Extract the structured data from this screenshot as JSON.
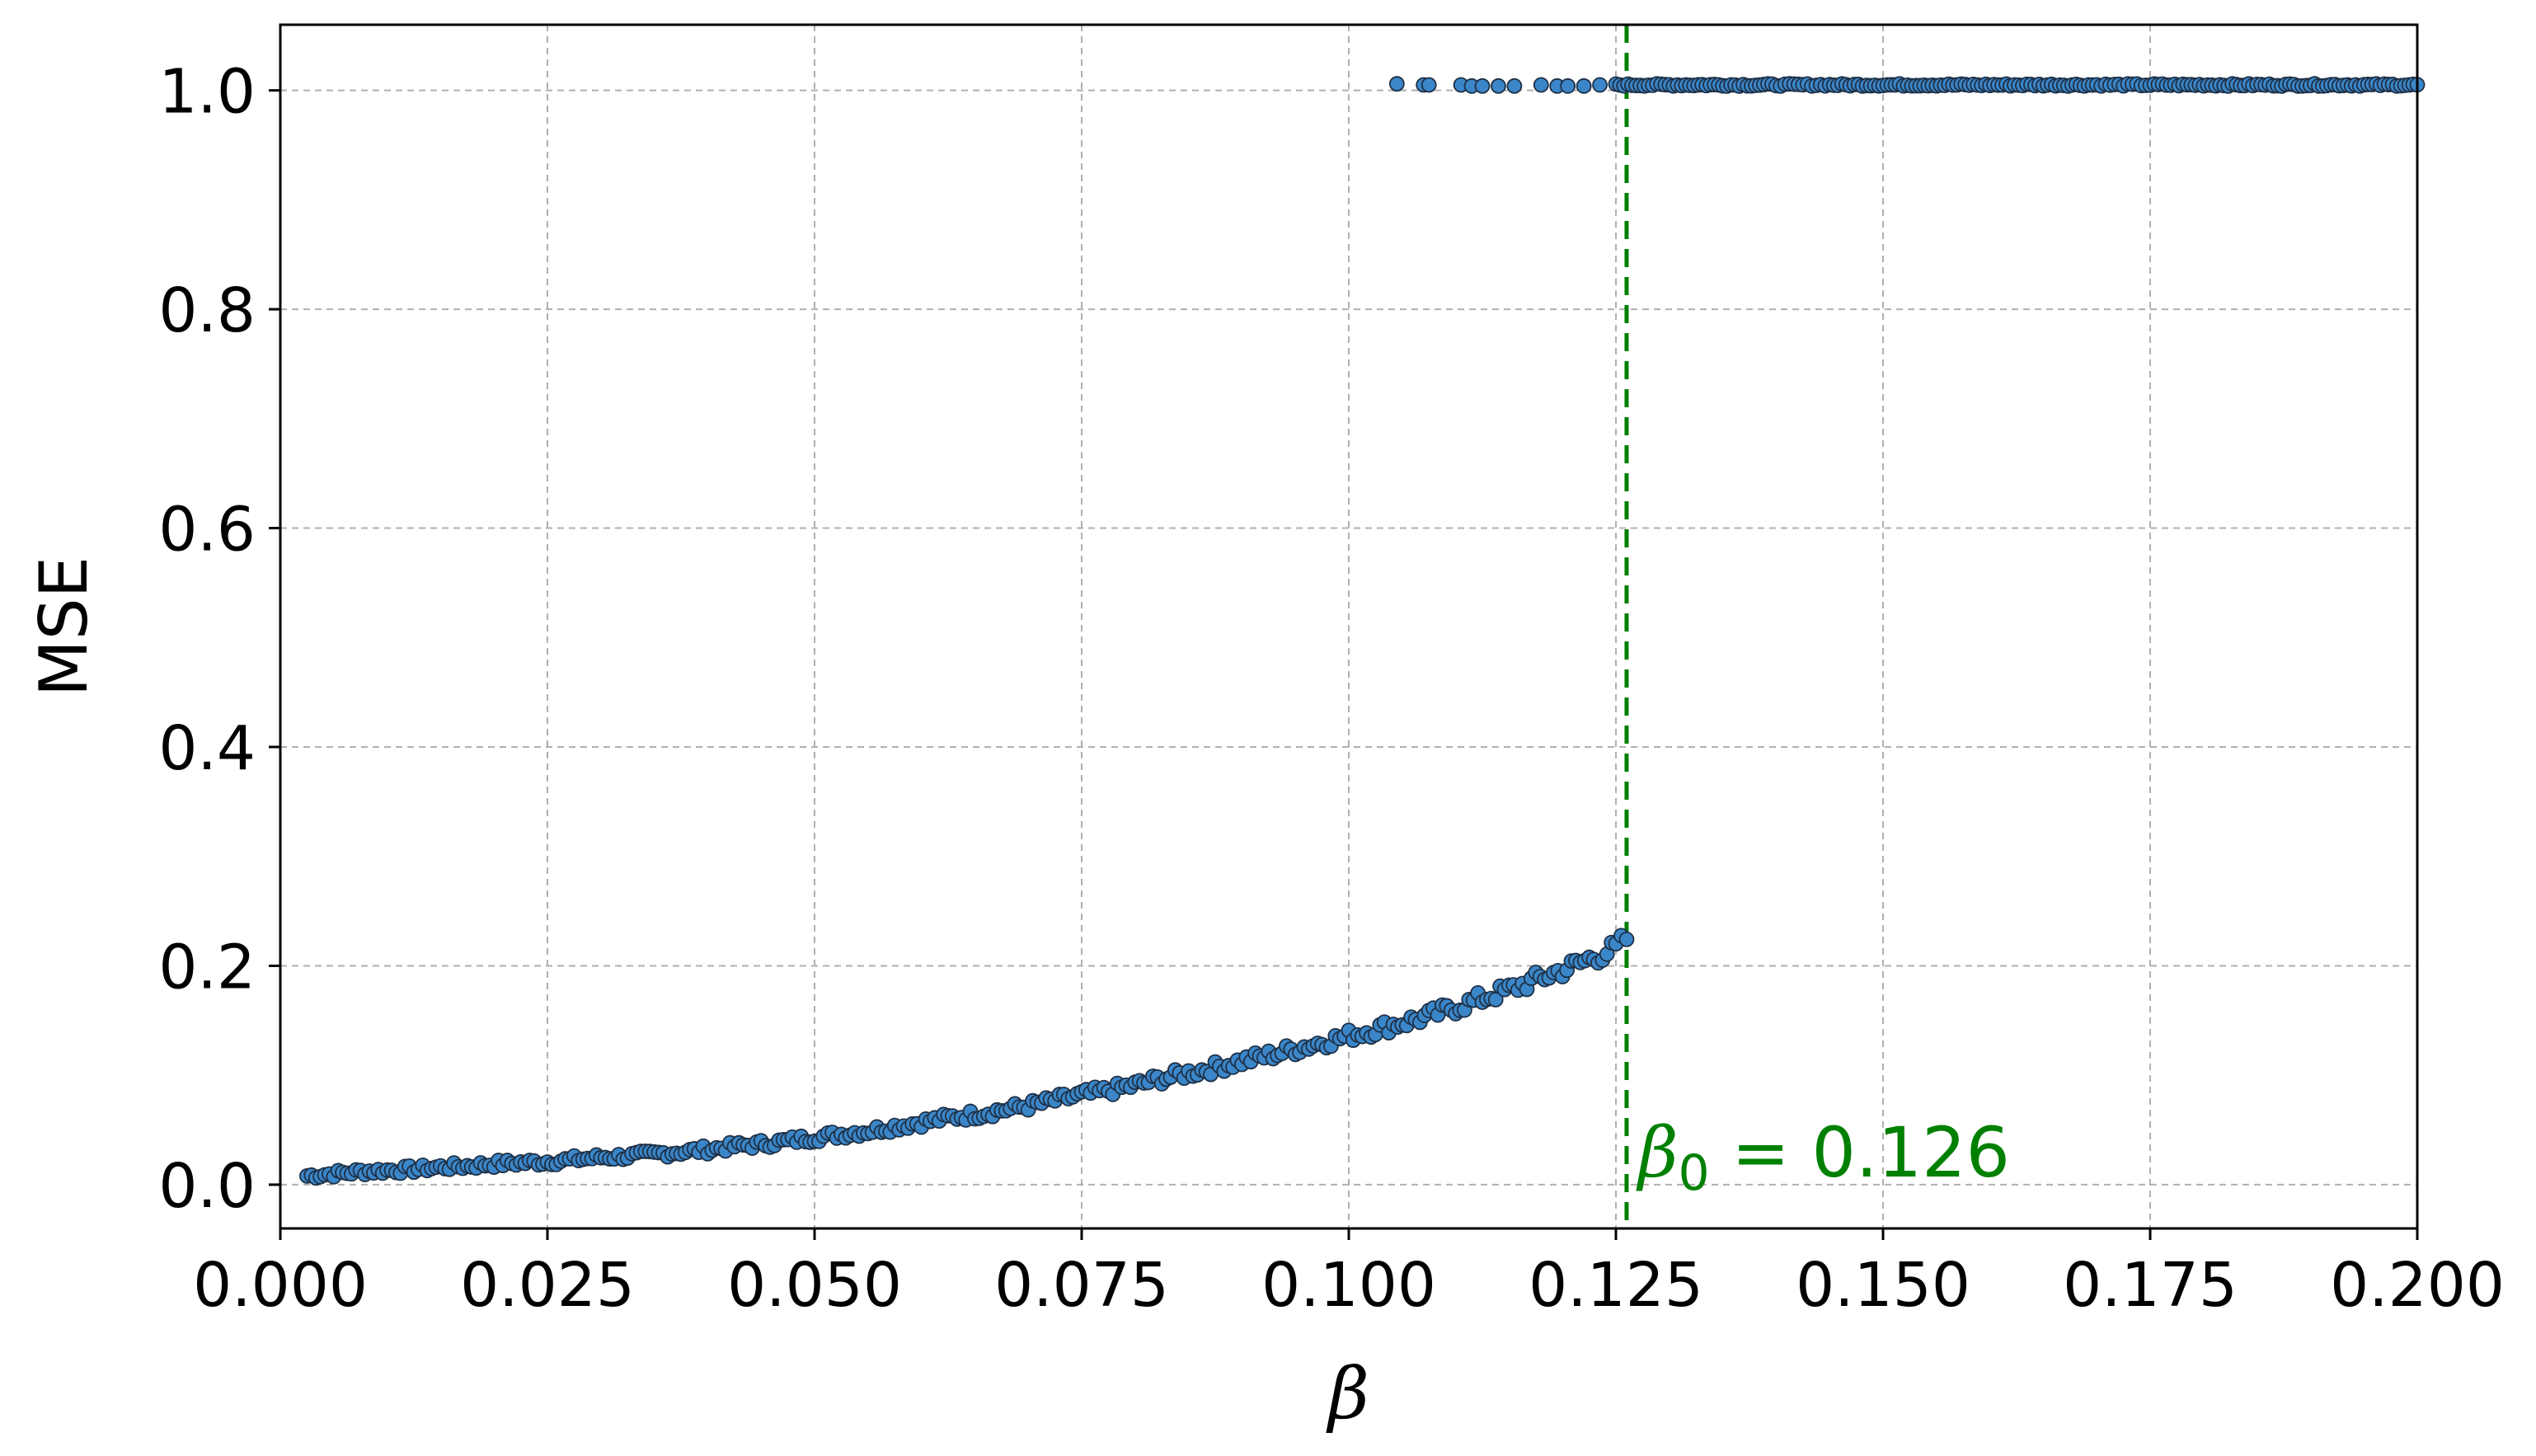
{
  "chart_data": {
    "type": "scatter",
    "xlabel": "β",
    "ylabel": "MSE",
    "xlim": [
      0.0,
      0.2
    ],
    "ylim": [
      -0.04,
      1.06
    ],
    "grid": true,
    "xticks": [
      0.0,
      0.025,
      0.05,
      0.075,
      0.1,
      0.125,
      0.15,
      0.175,
      0.2
    ],
    "xtick_labels": [
      "0.000",
      "0.025",
      "0.050",
      "0.075",
      "0.100",
      "0.125",
      "0.150",
      "0.175",
      "0.200"
    ],
    "yticks": [
      0.0,
      0.2,
      0.4,
      0.6,
      0.8,
      1.0
    ],
    "ytick_labels": [
      "0.0",
      "0.2",
      "0.4",
      "0.6",
      "0.8",
      "1.0"
    ],
    "series": [
      {
        "marker_color": "#3a86c8",
        "marker_edge": "#1f2f44",
        "lower_branch": {
          "x": [
            0.0025,
            0.005,
            0.0075,
            0.01,
            0.0125,
            0.015,
            0.0175,
            0.02,
            0.0225,
            0.025,
            0.0275,
            0.03,
            0.0325,
            0.035,
            0.0375,
            0.04,
            0.0425,
            0.045,
            0.0475,
            0.05,
            0.0525,
            0.055,
            0.0575,
            0.06,
            0.0625,
            0.065,
            0.0675,
            0.07,
            0.0725,
            0.075,
            0.0775,
            0.08,
            0.0825,
            0.085,
            0.0875,
            0.09,
            0.0925,
            0.095,
            0.0975,
            0.1,
            0.1025,
            0.105,
            0.1075,
            0.11,
            0.1125,
            0.115,
            0.1175,
            0.12,
            0.1225,
            0.125,
            0.126
          ],
          "y": [
            0.008,
            0.01,
            0.012,
            0.013,
            0.014,
            0.016,
            0.017,
            0.019,
            0.02,
            0.021,
            0.023,
            0.025,
            0.026,
            0.028,
            0.03,
            0.032,
            0.035,
            0.037,
            0.04,
            0.043,
            0.046,
            0.049,
            0.053,
            0.057,
            0.061,
            0.064,
            0.068,
            0.072,
            0.077,
            0.082,
            0.086,
            0.091,
            0.097,
            0.102,
            0.107,
            0.113,
            0.118,
            0.124,
            0.13,
            0.136,
            0.142,
            0.148,
            0.154,
            0.162,
            0.17,
            0.178,
            0.187,
            0.196,
            0.206,
            0.216,
            0.225
          ]
        },
        "upper_branch": {
          "x": [
            0.1045,
            0.107,
            0.1075,
            0.1105,
            0.1115,
            0.1125,
            0.114,
            0.1155,
            0.118,
            0.1195,
            0.1205,
            0.122,
            0.1235,
            0.125,
            0.1265,
            0.13,
            0.135,
            0.14,
            0.145,
            0.15,
            0.155,
            0.16,
            0.165,
            0.17,
            0.175,
            0.18,
            0.185,
            0.19,
            0.195,
            0.2
          ],
          "y": [
            1.006,
            1.005,
            1.005,
            1.005,
            1.004,
            1.004,
            1.004,
            1.004,
            1.005,
            1.004,
            1.004,
            1.004,
            1.005,
            1.005,
            1.005,
            1.005,
            1.005,
            1.005,
            1.005,
            1.005,
            1.005,
            1.005,
            1.005,
            1.005,
            1.005,
            1.005,
            1.005,
            1.005,
            1.005,
            1.005
          ]
        }
      }
    ],
    "annotations": [
      {
        "type": "vline",
        "x": 0.126,
        "color": "#008000",
        "style": "dashed",
        "label_symbol": "β",
        "label_sub": "0",
        "label_text": " = 0.126"
      }
    ]
  }
}
